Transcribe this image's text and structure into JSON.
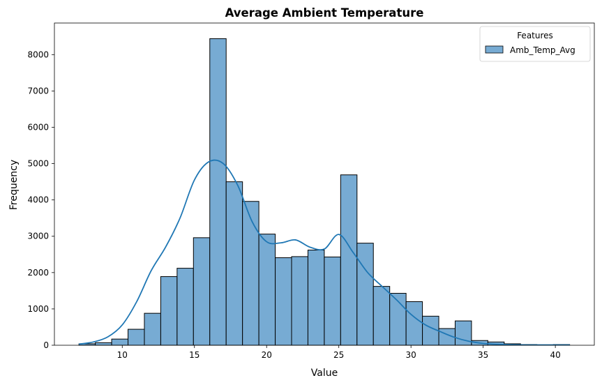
{
  "chart_data": {
    "type": "bar",
    "title": "Average Ambient Temperature",
    "xlabel": "Value",
    "ylabel": "Frequency",
    "xlim": [
      5.3,
      42.7
    ],
    "ylim": [
      0,
      8870
    ],
    "xticks": [
      10,
      15,
      20,
      25,
      30,
      35,
      40
    ],
    "yticks": [
      0,
      1000,
      2000,
      3000,
      4000,
      5000,
      6000,
      7000,
      8000
    ],
    "grid": false,
    "legend": {
      "title": "Features",
      "placement": "top-right",
      "entries": [
        "Amb_Temp_Avg"
      ]
    },
    "bin_start": 7.0,
    "bin_width": 1.133,
    "series": [
      {
        "name": "Amb_Temp_Avg",
        "color": "#1f77b4",
        "bar_color": "#77abd3",
        "values": [
          40,
          70,
          170,
          440,
          880,
          1890,
          2120,
          2960,
          8440,
          4500,
          3960,
          3060,
          2410,
          2440,
          2620,
          2430,
          4690,
          2810,
          1620,
          1430,
          1200,
          800,
          460,
          670,
          130,
          90,
          40,
          20,
          10,
          20
        ]
      }
    ],
    "kde": {
      "x": [
        7,
        8,
        9,
        10,
        11,
        12,
        13,
        14,
        15,
        16,
        17,
        18,
        19,
        20,
        21,
        22,
        23,
        24,
        25,
        26,
        27,
        28,
        29,
        30,
        31,
        32,
        33,
        34,
        35,
        36,
        37,
        38,
        39,
        40,
        41
      ],
      "y": [
        30,
        90,
        230,
        560,
        1200,
        2050,
        2700,
        3500,
        4550,
        5050,
        5000,
        4400,
        3400,
        2850,
        2820,
        2900,
        2700,
        2650,
        3050,
        2550,
        2000,
        1620,
        1250,
        850,
        560,
        380,
        220,
        110,
        50,
        25,
        15,
        10,
        8,
        8,
        8
      ]
    }
  }
}
